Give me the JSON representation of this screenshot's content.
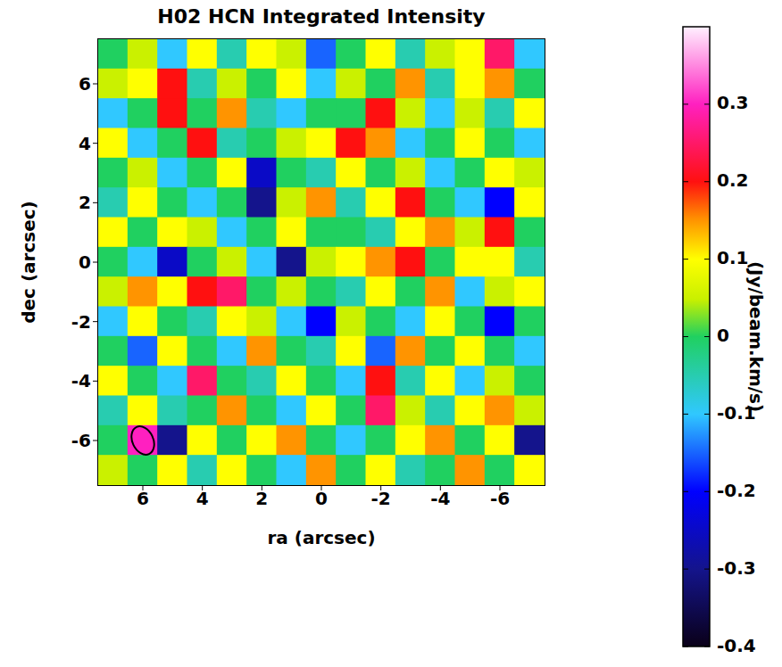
{
  "chart_data": {
    "type": "heatmap",
    "title": "H02 HCN Integrated Intensity",
    "x_label": "ra (arcsec)",
    "y_label": "dec (arcsec)",
    "xlim": [
      7.5,
      -7.5
    ],
    "ylim": [
      -7.5,
      7.5
    ],
    "xticks": [
      6,
      4,
      2,
      0,
      -2,
      -4,
      -6
    ],
    "yticks": [
      -6,
      -4,
      -2,
      0,
      2,
      4,
      6
    ],
    "x": [
      7,
      6,
      5,
      4,
      3,
      2,
      1,
      0,
      -1,
      -2,
      -3,
      -4,
      -5,
      -6,
      -7
    ],
    "y": [
      7,
      6,
      5,
      4,
      3,
      2,
      1,
      0,
      -1,
      -2,
      -3,
      -4,
      -5,
      -6,
      -7
    ],
    "cells": [
      [
        0.0,
        0.05,
        -0.1,
        0.1,
        -0.05,
        0.1,
        0.05,
        -0.15,
        0.0,
        0.1,
        -0.05,
        0.05,
        0.1,
        0.25,
        -0.1
      ],
      [
        0.05,
        0.1,
        0.2,
        -0.05,
        0.05,
        0.0,
        0.1,
        -0.1,
        0.05,
        0.0,
        0.15,
        -0.05,
        0.1,
        0.15,
        0.0
      ],
      [
        -0.1,
        0.0,
        0.2,
        0.0,
        0.15,
        -0.05,
        -0.1,
        0.0,
        0.0,
        0.2,
        0.05,
        -0.1,
        0.05,
        -0.05,
        0.1
      ],
      [
        0.1,
        -0.1,
        0.0,
        0.2,
        -0.05,
        0.0,
        0.05,
        0.1,
        0.2,
        0.15,
        -0.1,
        0.0,
        0.1,
        0.0,
        -0.1
      ],
      [
        0.0,
        0.05,
        -0.1,
        0.0,
        0.1,
        -0.25,
        0.0,
        -0.05,
        0.1,
        0.0,
        0.05,
        -0.1,
        0.0,
        0.1,
        0.05
      ],
      [
        -0.05,
        0.1,
        0.0,
        -0.1,
        0.0,
        -0.3,
        0.05,
        0.15,
        -0.05,
        0.1,
        0.2,
        0.0,
        -0.1,
        -0.2,
        0.1
      ],
      [
        0.1,
        0.0,
        0.1,
        0.05,
        -0.1,
        0.0,
        0.1,
        0.0,
        0.0,
        -0.05,
        0.1,
        0.15,
        0.05,
        0.2,
        0.0
      ],
      [
        0.0,
        -0.1,
        -0.25,
        0.0,
        0.05,
        -0.1,
        -0.3,
        0.05,
        0.1,
        0.15,
        0.2,
        0.0,
        0.1,
        0.1,
        -0.05
      ],
      [
        0.05,
        0.15,
        0.1,
        0.2,
        0.25,
        0.0,
        0.05,
        0.0,
        -0.05,
        0.1,
        0.0,
        0.15,
        -0.1,
        0.05,
        0.1
      ],
      [
        -0.1,
        0.1,
        0.0,
        -0.05,
        0.1,
        0.05,
        -0.1,
        -0.2,
        0.05,
        0.0,
        -0.1,
        0.1,
        0.0,
        -0.2,
        0.0
      ],
      [
        0.0,
        -0.15,
        0.1,
        0.0,
        -0.1,
        0.15,
        0.0,
        -0.05,
        0.1,
        -0.15,
        0.15,
        0.0,
        0.1,
        0.0,
        -0.1
      ],
      [
        0.1,
        0.0,
        -0.1,
        0.25,
        0.0,
        -0.05,
        0.1,
        0.0,
        -0.1,
        0.2,
        -0.05,
        0.1,
        -0.1,
        0.05,
        0.0
      ],
      [
        -0.05,
        0.1,
        -0.05,
        0.0,
        0.15,
        0.0,
        -0.1,
        0.1,
        0.0,
        0.25,
        0.05,
        -0.05,
        0.1,
        0.15,
        0.05
      ],
      [
        0.0,
        0.3,
        -0.3,
        0.1,
        0.0,
        0.1,
        0.15,
        0.0,
        -0.1,
        0.0,
        0.1,
        0.15,
        0.0,
        0.1,
        -0.3
      ],
      [
        0.05,
        0.0,
        0.1,
        -0.05,
        0.1,
        0.0,
        -0.1,
        0.15,
        0.0,
        0.1,
        -0.05,
        0.0,
        0.15,
        0.0,
        0.1
      ]
    ],
    "colorbar": {
      "label": "(Jy/beam.km/s)",
      "range": [
        -0.4,
        0.4
      ],
      "ticks": [
        -0.4,
        -0.3,
        -0.2,
        -0.1,
        0,
        0.1,
        0.2,
        0.3
      ]
    },
    "beam": {
      "ra": 6,
      "dec": -6,
      "major": 1.0,
      "minor": 0.7
    }
  }
}
